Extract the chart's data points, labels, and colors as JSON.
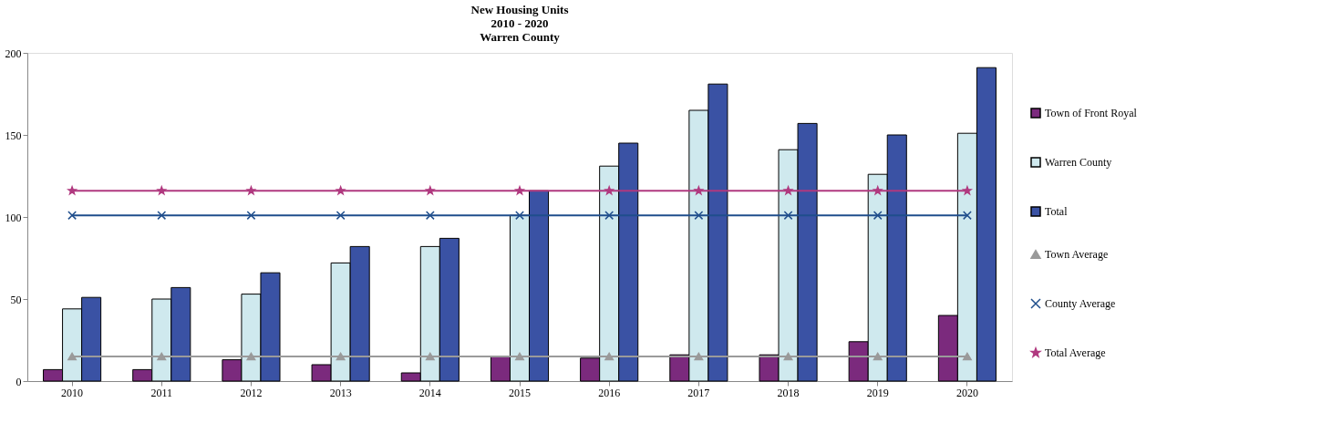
{
  "chart_data": {
    "type": "bar",
    "title": "New Housing Units\n2010 - 2020\nWarren County",
    "categories": [
      "2010",
      "2011",
      "2012",
      "2013",
      "2014",
      "2015",
      "2016",
      "2017",
      "2018",
      "2019",
      "2020"
    ],
    "series": [
      {
        "name": "Town of Front Royal",
        "color": "#7b2a7d",
        "values": [
          7,
          7,
          13,
          10,
          5,
          15,
          14,
          16,
          16,
          24,
          40
        ]
      },
      {
        "name": "Warren County",
        "color": "#cfe9ee",
        "values": [
          44,
          50,
          53,
          72,
          82,
          101,
          131,
          165,
          141,
          126,
          151
        ]
      },
      {
        "name": "Total",
        "color": "#3a52a4",
        "values": [
          51,
          57,
          66,
          82,
          87,
          116,
          145,
          181,
          157,
          150,
          191
        ]
      },
      {
        "name": "Town Average",
        "type": "line",
        "marker": "triangle",
        "color": "#9a9a9a",
        "values": [
          15,
          15,
          15,
          15,
          15,
          15,
          15,
          15,
          15,
          15,
          15
        ]
      },
      {
        "name": "County Average",
        "type": "line",
        "marker": "cross",
        "color": "#1f4e8c",
        "values": [
          101,
          101,
          101,
          101,
          101,
          101,
          101,
          101,
          101,
          101,
          101
        ]
      },
      {
        "name": "Total Average",
        "type": "line",
        "marker": "star",
        "color": "#b0397f",
        "values": [
          116,
          116,
          116,
          116,
          116,
          116,
          116,
          116,
          116,
          116,
          116
        ]
      }
    ],
    "ylim": [
      0,
      200
    ],
    "yticks": [
      0,
      50,
      100,
      150,
      200
    ],
    "grid": false,
    "legend": "right"
  }
}
